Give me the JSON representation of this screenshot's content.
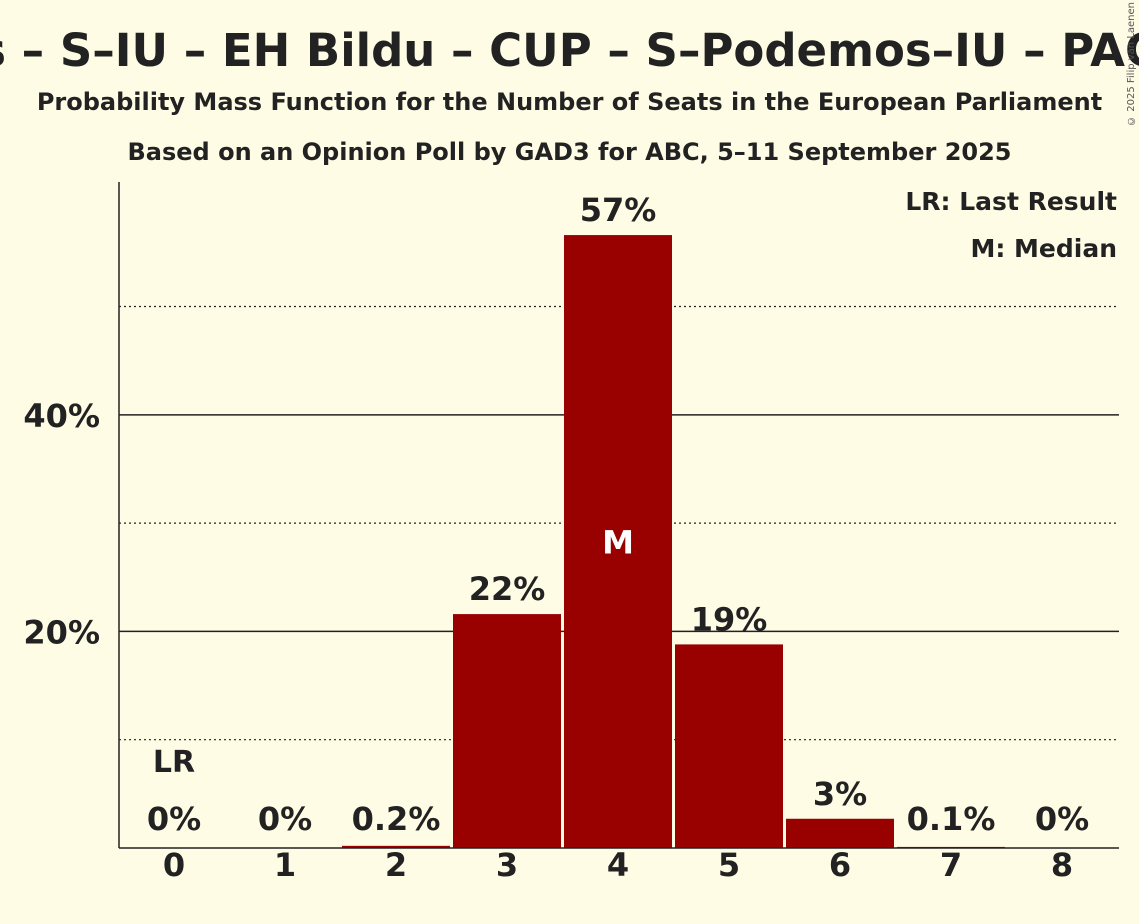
{
  "title": "mos – S–IU – EH Bildu – CUP – S–Podemos–IU – PACMA",
  "subtitle": "Probability Mass Function for the Number of Seats in the European Parliament",
  "subtitle2": "Based on an Opinion Poll by GAD3 for ABC, 5–11 September 2025",
  "copyright": "© 2025 Filip van Laenen",
  "chart_data": {
    "type": "bar",
    "categories": [
      "0",
      "1",
      "2",
      "3",
      "4",
      "5",
      "6",
      "7",
      "8"
    ],
    "values": [
      0,
      0,
      0.2,
      21.6,
      56.6,
      18.8,
      2.7,
      0.1,
      0
    ],
    "data_labels": [
      "0%",
      "0%",
      "0.2%",
      "22%",
      "57%",
      "19%",
      "3%",
      "0.1%",
      "0%"
    ],
    "ylim": [
      0,
      61.5
    ],
    "major_ticks": [
      20,
      40
    ],
    "major_tick_labels": [
      "20%",
      "40%"
    ],
    "minor_gridlines": [
      10,
      30,
      50
    ],
    "legend": [
      "LR: Last Result",
      "M: Median"
    ],
    "legend_position": "top-right",
    "last_result_category": "0",
    "last_result_label": "LR",
    "median_category": "4",
    "median_label": "M",
    "bar_color": "#990000",
    "background_color": "#fffce6"
  }
}
